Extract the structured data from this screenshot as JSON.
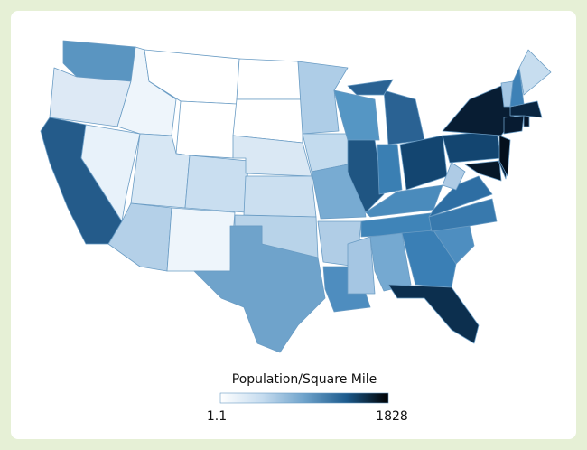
{
  "legend": {
    "title": "Population/Square Mile",
    "min": 1.1,
    "max": 1828,
    "colors": [
      "#ffffff",
      "#c6dcef",
      "#6fa3cb",
      "#1c5a8c",
      "#000000"
    ]
  },
  "region_colors": [
    "#5a95c1",
    "#dde9f5",
    "#245b8a",
    "#e8f2fa",
    "#eef5fb",
    "#ffffff",
    "#ffffff",
    "#d7e7f4",
    "#b4d0e8",
    "#c9def0",
    "#eef5fb",
    "#ffffff",
    "#ffffff",
    "#dae8f4",
    "#cbdff0",
    "#b8d3e9",
    "#6fa3cb",
    "#aecde7",
    "#c3dbee",
    "#78abd2",
    "#b0cde6",
    "#4e8dbf",
    "#5596c4",
    "#1f5582",
    "#2a6293",
    "#2a6293",
    "#3a7fb3",
    "#134570",
    "#4a8bbc",
    "#3f84b8",
    "#a5c6e3",
    "#75a9d1",
    "#3a7fb5",
    "#0c2f4e",
    "#4e8ec0",
    "#3879ad",
    "#2e6ea3",
    "#aecbe5",
    "#134570",
    "#081d33",
    "#061728",
    "#0a2540",
    "#040f1c",
    "#071b31",
    "#061528",
    "#0a2540",
    "#a4c6e3",
    "#3e81b6",
    "#c7ddef"
  ]
}
